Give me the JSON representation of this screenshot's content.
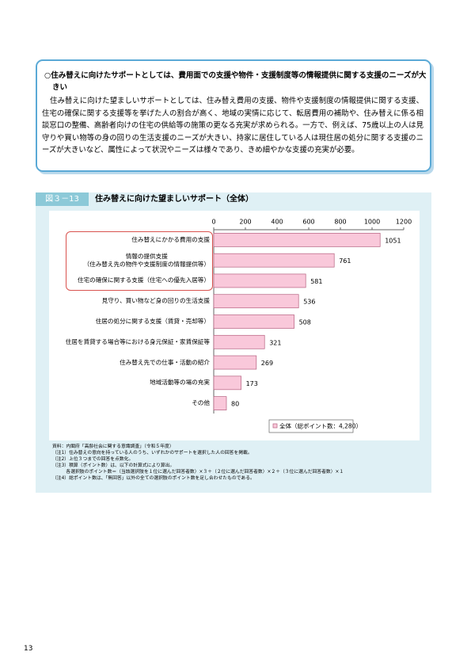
{
  "box": {
    "heading": "○住み替えに向けたサポートとしては、費用面での支援や物件・支援制度等の情報提供に関する支援のニーズが大きい",
    "body": "住み替えに向けた望ましいサポートとしては、住み替え費用の支援、物件や支援制度の情報提供に関する支援、住宅の確保に関する支援等を挙げた人の割合が高く、地域の実情に応じて、転居費用の補助や、住み替えに係る相談窓口の整備、高齢者向けの住宅の供給等の施策の更なる充実が求められる。一方で、例えば、75歳以上の人は見守りや買い物等の身の回りの生活支援のニーズが大きい、持家に居住している人は現住居の処分に関する支援のニーズが大きいなど、属性によって状況やニーズは様々であり、きめ細やかな支援の充実が必要。"
  },
  "figure": {
    "label": "図３－13",
    "title": "住み替えに向けた望ましいサポート（全体）"
  },
  "chart_data": {
    "type": "bar",
    "orientation": "horizontal",
    "categories": [
      "住み替えにかかる費用の支援",
      "情報の提供支援\n（住み替え先の物件や支援制度の情報提供等）",
      "住宅の確保に関する支援（住宅への優先入居等）",
      "見守り、買い物など身の回りの生活支援",
      "住居の処分に関する支援（賃貸・売却等）",
      "住居を賃貸する場合等における身元保証・家賃保証等",
      "住み替え先での仕事・活動の紹介",
      "地域活動等の場の充実",
      "その他"
    ],
    "series": [
      {
        "name": "全体（総ポイント数：4,280）",
        "color": "#f9c8da",
        "values": [
          1051,
          761,
          581,
          536,
          508,
          321,
          269,
          173,
          80
        ]
      }
    ],
    "xlim": [
      0,
      1200
    ],
    "xticks": [
      0,
      200,
      400,
      600,
      800,
      1000,
      1200
    ]
  },
  "notes": [
    "資料：内閣府「高齢社会に関する意識調査」（令和５年度）",
    "（注1）住み替えの意向を持っている人のうち、いずれかのサポートを選択した人の回答を掲載。",
    "（注2）上位３つまでの回答を点数化。",
    "（注3）積算（ポイント数）は、以下の計算式により算出。",
    "　　　各選択肢のポイント数＝（当該選択肢を１位に選んだ回答者数）×３＋（２位に選んだ回答者数）×２＋（３位に選んだ回答者数）×１",
    "（注4）総ポイント数は、「無回答」以外の全ての選択肢のポイント数を足し合わせたものである。"
  ],
  "page_number": "13"
}
